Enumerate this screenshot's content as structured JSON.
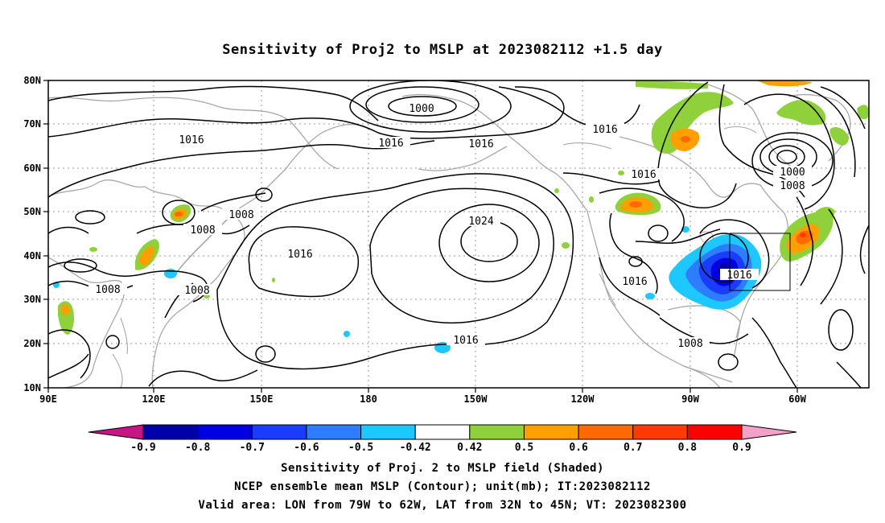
{
  "title": "Sensitivity of Proj2 to MSLP at 2023082112 +1.5 day",
  "lat_ticks": [
    "80N",
    "70N",
    "60N",
    "50N",
    "40N",
    "30N",
    "20N",
    "10N"
  ],
  "lon_ticks": [
    "90E",
    "120E",
    "150E",
    "180",
    "150W",
    "120W",
    "90W",
    "60W"
  ],
  "contour_labels": [
    "1000",
    "1016",
    "1016",
    "1016",
    "1016",
    "1000",
    "1008",
    "1016",
    "1008",
    "1008",
    "1024",
    "1016",
    "1008",
    "1008",
    "1016",
    "1016",
    "1008",
    "1016"
  ],
  "colorbar": {
    "labels": [
      "-0.9",
      "-0.8",
      "-0.7",
      "-0.6",
      "-0.5",
      "-0.42",
      "0.42",
      "0.5",
      "0.6",
      "0.7",
      "0.8",
      "0.9"
    ],
    "colors": [
      "#c71585",
      "#0000a8",
      "#0000e0",
      "#1a3cff",
      "#2f7dff",
      "#1cc8ff",
      "#ffffff",
      "#8fd13a",
      "#ffa000",
      "#ff6a00",
      "#ff3a00",
      "#ff0000",
      "#f5a0c8"
    ]
  },
  "captions": [
    "Sensitivity of Proj. 2 to MSLP field (Shaded)",
    "NCEP ensemble mean MSLP (Contour); unit(mb); IT:2023082112",
    "Valid area: LON from 79W to 62W, LAT from 32N to 45N; VT: 2023082300"
  ],
  "valid_area": {
    "lon_from": "79W",
    "lon_to": "62W",
    "lat_from": "32N",
    "lat_to": "45N"
  }
}
